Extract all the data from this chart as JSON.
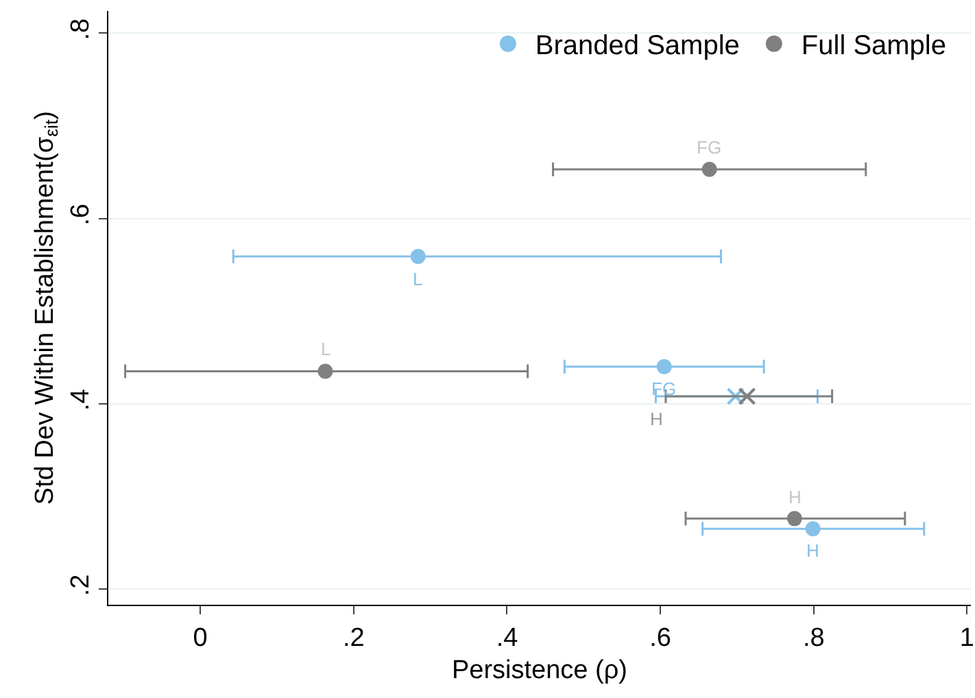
{
  "chart_data": {
    "type": "scatter",
    "xlabel": "Persistence (ρ)",
    "ylabel": "Std Dev Within Establishment(σ$_{εit}$)",
    "xlim": [
      -0.12,
      1.005
    ],
    "xticks": [
      {
        "value": 0,
        "label": "0"
      },
      {
        "value": 0.2,
        "label": ".2"
      },
      {
        "value": 0.4,
        "label": ".4"
      },
      {
        "value": 0.6,
        "label": ".6"
      },
      {
        "value": 0.8,
        "label": ".8"
      },
      {
        "value": 1,
        "label": "1"
      }
    ],
    "ylim": [
      0.183,
      0.824
    ],
    "yticks": [
      {
        "value": 0.2,
        "label": ".2"
      },
      {
        "value": 0.4,
        "label": ".4"
      },
      {
        "value": 0.6,
        "label": ".6"
      },
      {
        "value": 0.8,
        "label": ".8"
      }
    ],
    "grid": "y",
    "legend": "top right",
    "series": [
      {
        "name": "Branded Sample",
        "color": "#85c1e9",
        "marker": "circle",
        "x": [
          0.284,
          0.605,
          0.799
        ],
        "values": [
          0.559,
          0.44,
          0.265
        ],
        "xerrors": [
          [
            0.043,
            0.679
          ],
          [
            0.475,
            0.735
          ],
          [
            0.655,
            0.944
          ]
        ]
      },
      {
        "name": "Full Sample",
        "color": "#808080",
        "marker": "circle",
        "x": [
          0.664,
          0.163,
          0.775
        ],
        "values": [
          0.653,
          0.435,
          0.276
        ],
        "xerrors": [
          [
            0.46,
            0.868
          ],
          [
            -0.098,
            0.427
          ],
          [
            0.633,
            0.919
          ]
        ]
      },
      {
        "color": "#85c1e9",
        "marker": "cross",
        "x": [
          0.698
        ],
        "values": [
          0.408
        ],
        "xerrors": [
          [
            0.594,
            0.805
          ]
        ]
      },
      {
        "color": "#808080",
        "marker": "cross",
        "x": [
          0.713
        ],
        "values": [
          0.408
        ],
        "xerrors": [
          [
            0.607,
            0.824
          ]
        ]
      }
    ],
    "annotations": [
      {
        "text": "L",
        "x": 0.284,
        "y": 0.559
      },
      {
        "text": "FG",
        "x": 0.605,
        "y": 0.44
      },
      {
        "text": "H",
        "x": 0.799,
        "y": 0.265
      },
      {
        "text": "FG",
        "x": 0.664,
        "y": 0.653
      },
      {
        "text": "L",
        "x": 0.163,
        "y": 0.435
      },
      {
        "text": "H",
        "x": 0.775,
        "y": 0.276
      },
      {
        "text": "H",
        "x": 0.594,
        "y": 0.408
      }
    ]
  }
}
